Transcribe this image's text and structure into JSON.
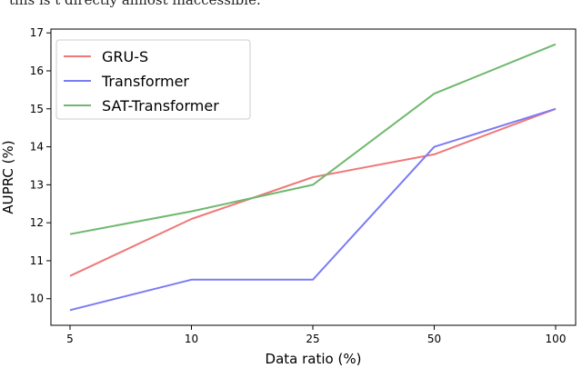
{
  "caption_fragment": "this is t directly almost inaccessible.",
  "chart_data": {
    "type": "line",
    "title": "",
    "xlabel": "Data ratio (%)",
    "ylabel": "AUPRC (%)",
    "categories": [
      "5",
      "10",
      "25",
      "50",
      "100"
    ],
    "ylim": [
      9.3,
      17.1
    ],
    "yticks": [
      10,
      11,
      12,
      13,
      14,
      15,
      16,
      17
    ],
    "grid": false,
    "legend_position": "top-left",
    "series": [
      {
        "name": "GRU-S",
        "color": "#f07878",
        "values": [
          10.6,
          12.1,
          13.2,
          13.8,
          15.0
        ]
      },
      {
        "name": "Transformer",
        "color": "#7b7bf5",
        "values": [
          9.7,
          10.5,
          10.5,
          14.0,
          15.0
        ]
      },
      {
        "name": "SAT-Transformer",
        "color": "#6fb86f",
        "values": [
          11.7,
          12.3,
          13.0,
          15.4,
          16.7
        ]
      }
    ]
  }
}
